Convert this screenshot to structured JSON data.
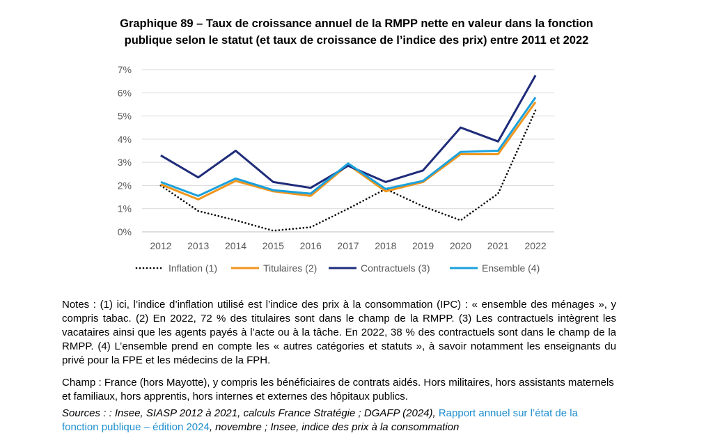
{
  "title_line1": "Graphique 89 – Taux de croissance annuel de la RMPP nette en valeur dans la fonction",
  "title_line2": "publique selon le statut (et taux de croissance de l’indice des prix) entre 2011 et 2022",
  "chart_data": {
    "type": "line",
    "x": [
      "2012",
      "2013",
      "2014",
      "2015",
      "2016",
      "2017",
      "2018",
      "2019",
      "2020",
      "2021",
      "2022"
    ],
    "ylim": [
      0,
      7
    ],
    "yticks": [
      "0%",
      "1%",
      "2%",
      "3%",
      "4%",
      "5%",
      "6%",
      "7%"
    ],
    "grid": true,
    "legend_position": "bottom",
    "series": [
      {
        "name": "Inflation (1)",
        "color": "#000000",
        "style": "dotted",
        "values": [
          2.0,
          0.9,
          0.5,
          0.05,
          0.2,
          1.0,
          1.85,
          1.1,
          0.5,
          1.65,
          5.25
        ]
      },
      {
        "name": "Titulaires (2)",
        "color": "#f0961e",
        "style": "solid",
        "values": [
          2.05,
          1.4,
          2.2,
          1.75,
          1.55,
          2.9,
          1.75,
          2.15,
          3.35,
          3.35,
          5.6
        ]
      },
      {
        "name": "Contractuels (3)",
        "color": "#1f2c7a",
        "style": "solid",
        "values": [
          3.3,
          2.35,
          3.5,
          2.15,
          1.9,
          2.85,
          2.15,
          2.65,
          4.5,
          3.9,
          6.75
        ]
      },
      {
        "name": "Ensemble (4)",
        "color": "#1ba1dc",
        "style": "solid",
        "values": [
          2.15,
          1.55,
          2.3,
          1.8,
          1.65,
          2.95,
          1.85,
          2.2,
          3.45,
          3.5,
          5.8
        ]
      }
    ]
  },
  "notes": "Notes : (1) ici, l’indice d’inflation utilisé est l’indice des prix à la consommation (IPC) : « ensemble des ménages », y compris tabac. (2) En 2022, 72 % des titulaires sont dans le champ de la RMPP. (3) Les contractuels intègrent les vacataires ainsi que les agents payés à l’acte ou à la tâche. En 2022, 38 % des contractuels sont dans le champ de la RMPP. (4) L’ensemble prend en compte les « autres catégories et statuts », à savoir notamment les enseignants du privé pour la FPE et les médecins de la FPH.",
  "champ": "Champ : France (hors Mayotte), y compris les bénéficiaires de contrats aidés. Hors militaires, hors assistants maternels et familiaux, hors apprentis, hors internes et externes des hôpitaux publics.",
  "sources": {
    "prefix": "Sources : : Insee, SIASP 2012 à 2021, calculs France Stratégie ; DGAFP (2024), ",
    "link": "Rapport annuel sur l’état de la fonction publique – édition 2024",
    "suffix": ", novembre ; Insee, indice des prix à la consommation"
  }
}
